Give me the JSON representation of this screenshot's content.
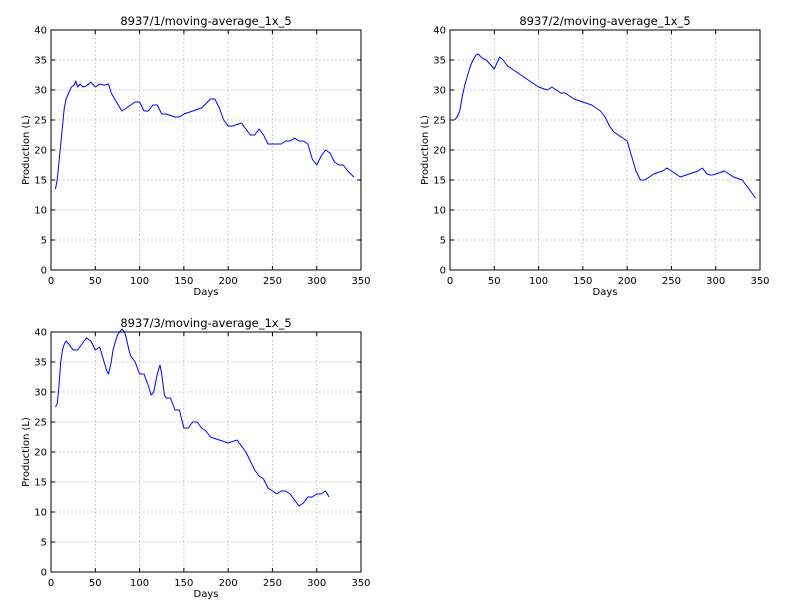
{
  "colors": {
    "series": "#0000ff",
    "background": "#ffffff",
    "grid": "#b0b0b0"
  },
  "chart_data": [
    {
      "type": "line",
      "title": "8937/1/moving-average_1x_5",
      "xlabel": "Days",
      "ylabel": "Production (L)",
      "xlim": [
        0,
        350
      ],
      "ylim": [
        0,
        40
      ],
      "xticks": [
        0,
        50,
        100,
        150,
        200,
        250,
        300,
        350
      ],
      "yticks": [
        0,
        5,
        10,
        15,
        20,
        25,
        30,
        35,
        40
      ],
      "grid": true,
      "series": [
        {
          "x": [
            5,
            7,
            9,
            11,
            13,
            15,
            17,
            20,
            23,
            26,
            28,
            30,
            33,
            36,
            40,
            45,
            50,
            55,
            60,
            65,
            68,
            72,
            76,
            80,
            85,
            90,
            95,
            100,
            105,
            110,
            115,
            120,
            125,
            130,
            140,
            145,
            150,
            160,
            170,
            180,
            185,
            190,
            195,
            200,
            205,
            215,
            220,
            225,
            230,
            235,
            240,
            245,
            250,
            260,
            265,
            270,
            275,
            280,
            285,
            290,
            295,
            300,
            305,
            310,
            315,
            320,
            325,
            330,
            335,
            342
          ],
          "y": [
            13.5,
            15,
            18,
            21,
            24,
            27,
            28.5,
            29.5,
            30.5,
            30.8,
            31.5,
            30.5,
            31,
            30.5,
            30.7,
            31.3,
            30.5,
            31,
            30.8,
            31,
            29.5,
            28.5,
            27.5,
            26.5,
            27,
            27.5,
            28,
            28,
            26.5,
            26.5,
            27.5,
            27.5,
            26,
            26,
            25.5,
            25.5,
            26,
            26.5,
            27,
            28.5,
            28.5,
            27,
            25,
            24,
            24,
            24.5,
            23.5,
            22.5,
            22.5,
            23.5,
            22.5,
            21,
            21,
            21,
            21.5,
            21.5,
            22,
            21.5,
            21.5,
            21,
            18.5,
            17.5,
            19,
            20,
            19.5,
            18,
            17.5,
            17.5,
            16.5,
            15.5
          ]
        }
      ]
    },
    {
      "type": "line",
      "title": "8937/2/moving-average_1x_5",
      "xlabel": "Days",
      "ylabel": "Production (L)",
      "xlim": [
        0,
        350
      ],
      "ylim": [
        0,
        40
      ],
      "xticks": [
        0,
        50,
        100,
        150,
        200,
        250,
        300,
        350
      ],
      "yticks": [
        0,
        5,
        10,
        15,
        20,
        25,
        30,
        35,
        40
      ],
      "grid": true,
      "series": [
        {
          "x": [
            5,
            8,
            11,
            14,
            17,
            20,
            23,
            26,
            29,
            32,
            35,
            38,
            41,
            44,
            47,
            50,
            53,
            56,
            60,
            65,
            70,
            75,
            80,
            85,
            90,
            95,
            100,
            110,
            115,
            120,
            125,
            130,
            140,
            150,
            160,
            170,
            175,
            180,
            185,
            190,
            195,
            200,
            205,
            210,
            215,
            220,
            230,
            240,
            245,
            250,
            260,
            270,
            280,
            285,
            290,
            295,
            300,
            310,
            320,
            330,
            335,
            340,
            345
          ],
          "y": [
            25,
            25.5,
            26.5,
            29,
            31,
            32.5,
            34,
            35,
            35.8,
            36,
            35.5,
            35.2,
            35,
            34.5,
            34,
            33.5,
            34.5,
            35.5,
            35,
            34,
            33.5,
            33,
            32.5,
            32,
            31.5,
            31,
            30.5,
            30,
            30.5,
            30,
            29.5,
            29.5,
            28.5,
            28,
            27.5,
            26.5,
            25.5,
            24,
            23,
            22.5,
            22,
            21.5,
            19,
            16.5,
            15,
            15,
            16,
            16.5,
            17,
            16.5,
            15.5,
            16,
            16.5,
            17,
            16,
            15.8,
            16,
            16.5,
            15.5,
            15,
            14,
            13,
            12
          ]
        }
      ]
    },
    {
      "type": "line",
      "title": "8937/3/moving-average_1x_5",
      "xlabel": "Days",
      "ylabel": "Production (L)",
      "xlim": [
        0,
        350
      ],
      "ylim": [
        0,
        40
      ],
      "xticks": [
        0,
        50,
        100,
        150,
        200,
        250,
        300,
        350
      ],
      "yticks": [
        0,
        5,
        10,
        15,
        20,
        25,
        30,
        35,
        40
      ],
      "grid": true,
      "series": [
        {
          "x": [
            5,
            7,
            9,
            11,
            13,
            15,
            17,
            20,
            25,
            30,
            35,
            40,
            45,
            50,
            55,
            60,
            63,
            65,
            68,
            70,
            75,
            80,
            83,
            85,
            88,
            90,
            95,
            100,
            105,
            110,
            113,
            116,
            120,
            123,
            125,
            128,
            130,
            135,
            140,
            145,
            150,
            155,
            160,
            165,
            170,
            175,
            180,
            190,
            200,
            210,
            215,
            220,
            225,
            230,
            235,
            240,
            245,
            250,
            255,
            260,
            265,
            270,
            275,
            280,
            285,
            290,
            295,
            300,
            305,
            310,
            314
          ],
          "y": [
            27.5,
            28,
            31,
            35,
            37,
            38,
            38.5,
            38,
            37,
            37,
            38,
            39,
            38.5,
            37,
            37.5,
            35,
            33.5,
            33,
            35,
            37,
            39.5,
            40.5,
            40,
            39,
            37,
            36,
            35,
            33,
            33,
            31,
            29.5,
            30,
            33,
            34.5,
            33,
            29.5,
            29,
            29,
            27,
            27,
            24,
            24,
            25,
            25,
            24,
            23.5,
            22.5,
            22,
            21.5,
            22,
            21,
            20,
            18.5,
            17,
            16,
            15.5,
            14,
            13.5,
            13,
            13.5,
            13.5,
            13,
            12,
            11,
            11.5,
            12.5,
            12.5,
            13,
            13,
            13.5,
            12.5
          ]
        }
      ]
    }
  ]
}
